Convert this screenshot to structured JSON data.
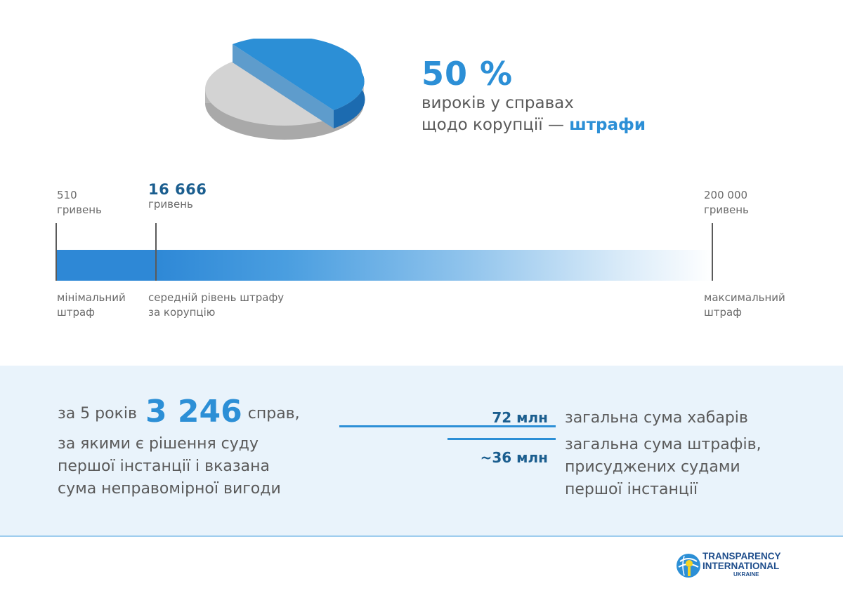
{
  "headline": {
    "percent": "50 %",
    "line1": "вироків у справах",
    "line2_prefix": "щодо корупції —",
    "line2_accent": "штрафи"
  },
  "pie": {
    "highlight_fraction": 0.5,
    "highlight_color": "#2c8fd6",
    "base_color": "#d3d3d3"
  },
  "scale": {
    "min": {
      "value": "510",
      "unit": "гривень",
      "caption_line1": "мінімальний",
      "caption_line2": "штраф"
    },
    "avg": {
      "value": "16 666",
      "unit": "гривень",
      "caption_line1": "середній рівень штрафу",
      "caption_line2": "за корупцію"
    },
    "max": {
      "value": "200 000",
      "unit": "гривень",
      "caption_line1": "максимальний",
      "caption_line2": "штраф"
    },
    "bar_color": "#2e88d6"
  },
  "cases": {
    "prefix": "за 5 років",
    "count": "3 246",
    "suffix": "справ,",
    "desc_line1": "за якими є рішення суду",
    "desc_line2": "першої інстанції і вказана",
    "desc_line3": "сума неправомірної вигоди"
  },
  "sums": {
    "bribes_value": "72 млн",
    "bribes_label": "загальна сума хабарів",
    "fines_value": "~36 млн",
    "fines_label_line1": "загальна сума штрафів,",
    "fines_label_line2": "присуджених судами",
    "fines_label_line3": "першої інстанції"
  },
  "logo": {
    "line1": "TRANSPARENCY",
    "line2": "INTERNATIONAL",
    "line3": "UKRAINE",
    "icon": "ti-globe-icon"
  },
  "colors": {
    "accent": "#2c8fd6",
    "dark_accent": "#1b5e8f",
    "band": "#e9f3fb"
  }
}
